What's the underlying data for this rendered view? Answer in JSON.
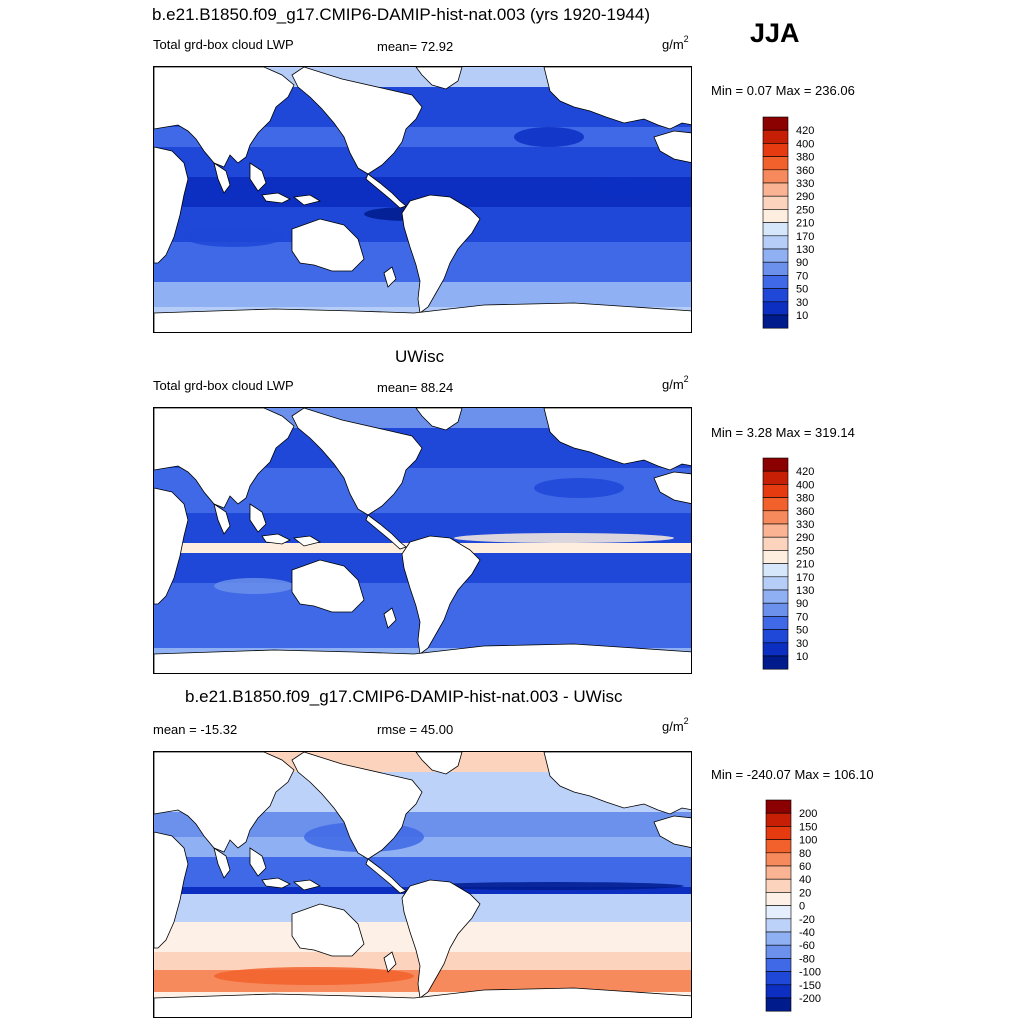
{
  "season": "JJA",
  "panels": [
    {
      "title": "b.e21.B1850.f09_g17.CMIP6-DAMIP-hist-nat.003 (yrs 1920-1944)",
      "left_label": "Total grd-box cloud LWP",
      "center_label": "mean=  72.92",
      "units": "g/m",
      "units_sup": "2",
      "minmax": "Min =   0.07 Max = 236.06",
      "levels": [
        "420",
        "400",
        "380",
        "360",
        "330",
        "290",
        "250",
        "210",
        "170",
        "130",
        "90",
        "70",
        "50",
        "30",
        "10"
      ],
      "colors": [
        "#8b0000",
        "#c71f05",
        "#e63a10",
        "#f2602c",
        "#f78a5c",
        "#fab393",
        "#fcd3bd",
        "#fdeedf",
        "#d6e6fb",
        "#b5cdf7",
        "#8fb0f2",
        "#6b91ec",
        "#3f69e6",
        "#1f48d8",
        "#0c2fc2",
        "#001b8c"
      ]
    },
    {
      "title": "UWisc",
      "left_label": "Total grd-box cloud LWP",
      "center_label": "mean=  88.24",
      "units": "g/m",
      "units_sup": "2",
      "minmax": "Min =   3.28 Max = 319.14",
      "levels": [
        "420",
        "400",
        "380",
        "360",
        "330",
        "290",
        "250",
        "210",
        "170",
        "130",
        "90",
        "70",
        "50",
        "30",
        "10"
      ],
      "colors": [
        "#8b0000",
        "#c71f05",
        "#e63a10",
        "#f2602c",
        "#f78a5c",
        "#fab393",
        "#fcd3bd",
        "#fdeedf",
        "#d6e6fb",
        "#b5cdf7",
        "#8fb0f2",
        "#6b91ec",
        "#3f69e6",
        "#1f48d8",
        "#0c2fc2",
        "#001b8c"
      ]
    },
    {
      "title": "b.e21.B1850.f09_g17.CMIP6-DAMIP-hist-nat.003 - UWisc",
      "left_label": "mean = -15.32",
      "center_label": "rmse =  45.00",
      "units": "g/m",
      "units_sup": "2",
      "minmax": "Min = -240.07 Max = 106.10",
      "levels": [
        "200",
        "150",
        "100",
        "80",
        "60",
        "40",
        "20",
        "0",
        "-20",
        "-40",
        "-60",
        "-80",
        "-100",
        "-150",
        "-200"
      ],
      "colors": [
        "#8b0000",
        "#c71f05",
        "#e63a10",
        "#f2602c",
        "#f78a5c",
        "#fab393",
        "#fcd3bd",
        "#fdf0e6",
        "#e4eefc",
        "#bcd2f8",
        "#8fb0f2",
        "#6b91ec",
        "#3f69e6",
        "#1f48d8",
        "#0c2fc2",
        "#001b8c"
      ]
    }
  ],
  "chart_data": [
    {
      "type": "heatmap",
      "title": "b.e21.B1850.f09_g17.CMIP6-DAMIP-hist-nat.003 (yrs 1920-1944)",
      "variable": "Total grd-box cloud LWP",
      "units": "g/m2",
      "mean": 72.92,
      "min": 0.07,
      "max": 236.06,
      "contour_levels": [
        10,
        30,
        50,
        70,
        90,
        130,
        170,
        210,
        250,
        290,
        330,
        360,
        380,
        400,
        420
      ]
    },
    {
      "type": "heatmap",
      "title": "UWisc",
      "variable": "Total grd-box cloud LWP",
      "units": "g/m2",
      "mean": 88.24,
      "min": 3.28,
      "max": 319.14,
      "contour_levels": [
        10,
        30,
        50,
        70,
        90,
        130,
        170,
        210,
        250,
        290,
        330,
        360,
        380,
        400,
        420
      ]
    },
    {
      "type": "heatmap",
      "title": "b.e21.B1850.f09_g17.CMIP6-DAMIP-hist-nat.003 - UWisc",
      "units": "g/m2",
      "mean": -15.32,
      "rmse": 45.0,
      "min": -240.07,
      "max": 106.1,
      "contour_levels": [
        -200,
        -150,
        -100,
        -80,
        -60,
        -40,
        -20,
        0,
        20,
        40,
        60,
        80,
        100,
        150,
        200
      ]
    }
  ]
}
